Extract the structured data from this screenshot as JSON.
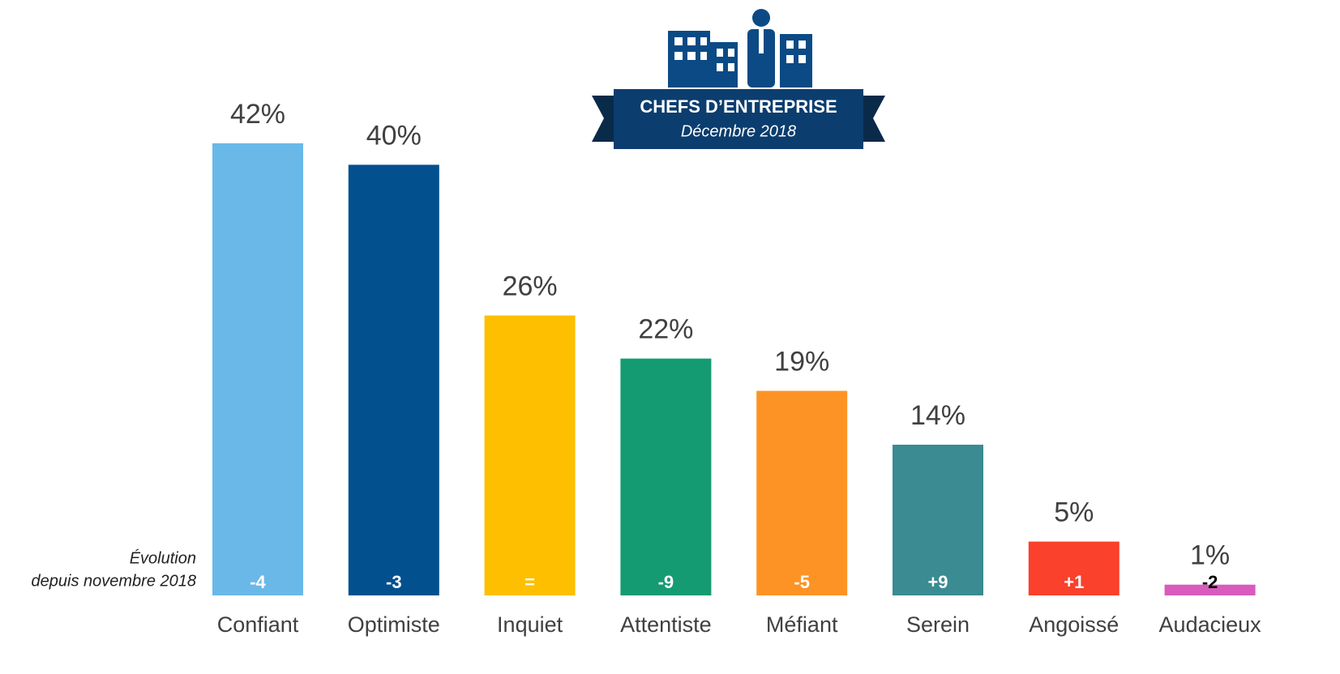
{
  "chart_data": {
    "type": "bar",
    "badge": {
      "title": "CHEFS D’ENTREPRISE",
      "subtitle": "Décembre 2018"
    },
    "evolution_label": [
      "Évolution",
      "depuis novembre 2018"
    ],
    "categories": [
      "Confiant",
      "Optimiste",
      "Inquiet",
      "Attentiste",
      "Méfiant",
      "Serein",
      "Angoissé",
      "Audacieux"
    ],
    "values": [
      42,
      40,
      26,
      22,
      19,
      14,
      5,
      1
    ],
    "value_labels": [
      "42%",
      "40%",
      "26%",
      "22%",
      "19%",
      "14%",
      "5%",
      "1%"
    ],
    "colors": [
      "#6ab8e8",
      "#03508f",
      "#fdbf00",
      "#159b72",
      "#fd9325",
      "#3a8b92",
      "#f9412b",
      "#d95bbd"
    ],
    "evolution": [
      "-4",
      "-3",
      "=",
      "-9",
      "-5",
      "+9",
      "+1",
      "-2"
    ]
  }
}
